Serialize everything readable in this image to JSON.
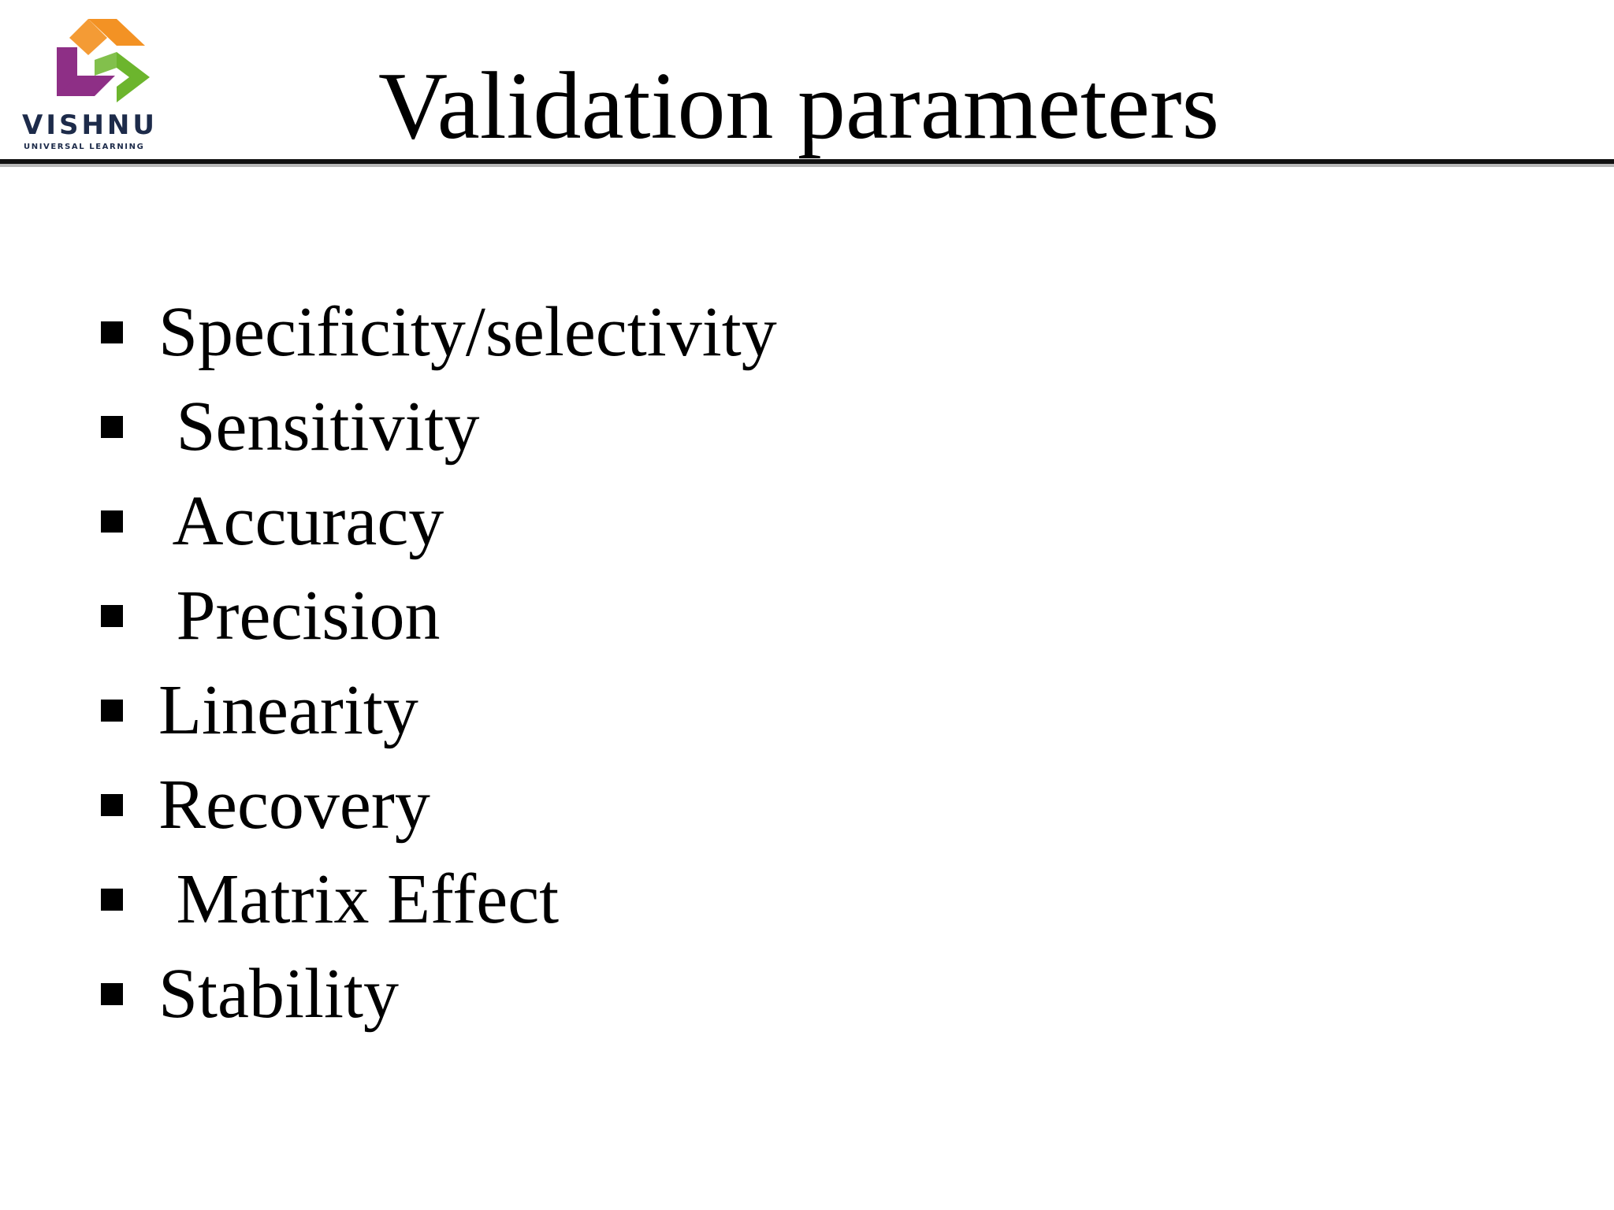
{
  "logo": {
    "name": "VISHNU",
    "tagline": "UNIVERSAL LEARNING",
    "colors": {
      "orange": "#f39224",
      "purple": "#8e2f86",
      "green": "#6cb52d"
    }
  },
  "slide": {
    "title": "Validation parameters",
    "bullets": [
      {
        "text": "Specificity/selectivity",
        "icon": "square-bullet-icon"
      },
      {
        "text": " Sensitivity",
        "icon": "square-bullet-icon"
      },
      {
        "text": " Accuracy",
        "icon": "square-bullet-icon"
      },
      {
        "text": " Precision",
        "icon": "square-bullet-icon"
      },
      {
        "text": "Linearity",
        "icon": "square-bullet-icon"
      },
      {
        "text": "Recovery",
        "icon": "square-bullet-icon"
      },
      {
        "text": " Matrix Effect",
        "icon": "square-bullet-icon"
      },
      {
        "text": "Stability",
        "icon": "square-bullet-icon"
      }
    ]
  }
}
